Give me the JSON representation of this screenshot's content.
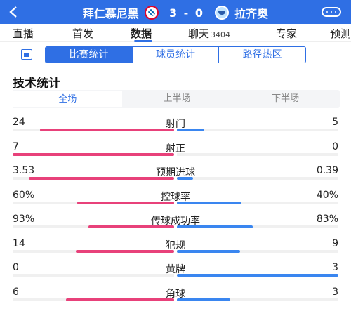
{
  "header": {
    "home_team": "拜仁慕尼黑",
    "away_team": "拉齐奥",
    "score": "3 - 0"
  },
  "tabs": [
    {
      "label": "直播"
    },
    {
      "label": "首发"
    },
    {
      "label": "数据",
      "active": true
    },
    {
      "label": "聊天",
      "count": "3404"
    },
    {
      "label": "专家"
    },
    {
      "label": "预测"
    }
  ],
  "segments": [
    "比赛统计",
    "球员统计",
    "路径热区"
  ],
  "section_title": "技术统计",
  "periods": [
    "全场",
    "上半场",
    "下半场"
  ],
  "colors": {
    "header": "#2f6fe4",
    "home_bar": "#e8417a",
    "away_bar": "#3a86f0"
  },
  "stats": [
    {
      "name": "射门",
      "home": "24",
      "away": "5",
      "home_frac": 0.83,
      "away_frac": 0.17
    },
    {
      "name": "射正",
      "home": "7",
      "away": "0",
      "home_frac": 1.0,
      "away_frac": 0.0
    },
    {
      "name": "预期进球",
      "home": "3.53",
      "away": "0.39",
      "home_frac": 0.9,
      "away_frac": 0.1
    },
    {
      "name": "控球率",
      "home": "60%",
      "away": "40%",
      "home_frac": 0.6,
      "away_frac": 0.4
    },
    {
      "name": "传球成功率",
      "home": "93%",
      "away": "83%",
      "home_frac": 0.53,
      "away_frac": 0.47
    },
    {
      "name": "犯规",
      "home": "14",
      "away": "9",
      "home_frac": 0.61,
      "away_frac": 0.39
    },
    {
      "name": "黄牌",
      "home": "0",
      "away": "3",
      "home_frac": 0.0,
      "away_frac": 1.0
    },
    {
      "name": "角球",
      "home": "6",
      "away": "3",
      "home_frac": 0.67,
      "away_frac": 0.33
    }
  ]
}
